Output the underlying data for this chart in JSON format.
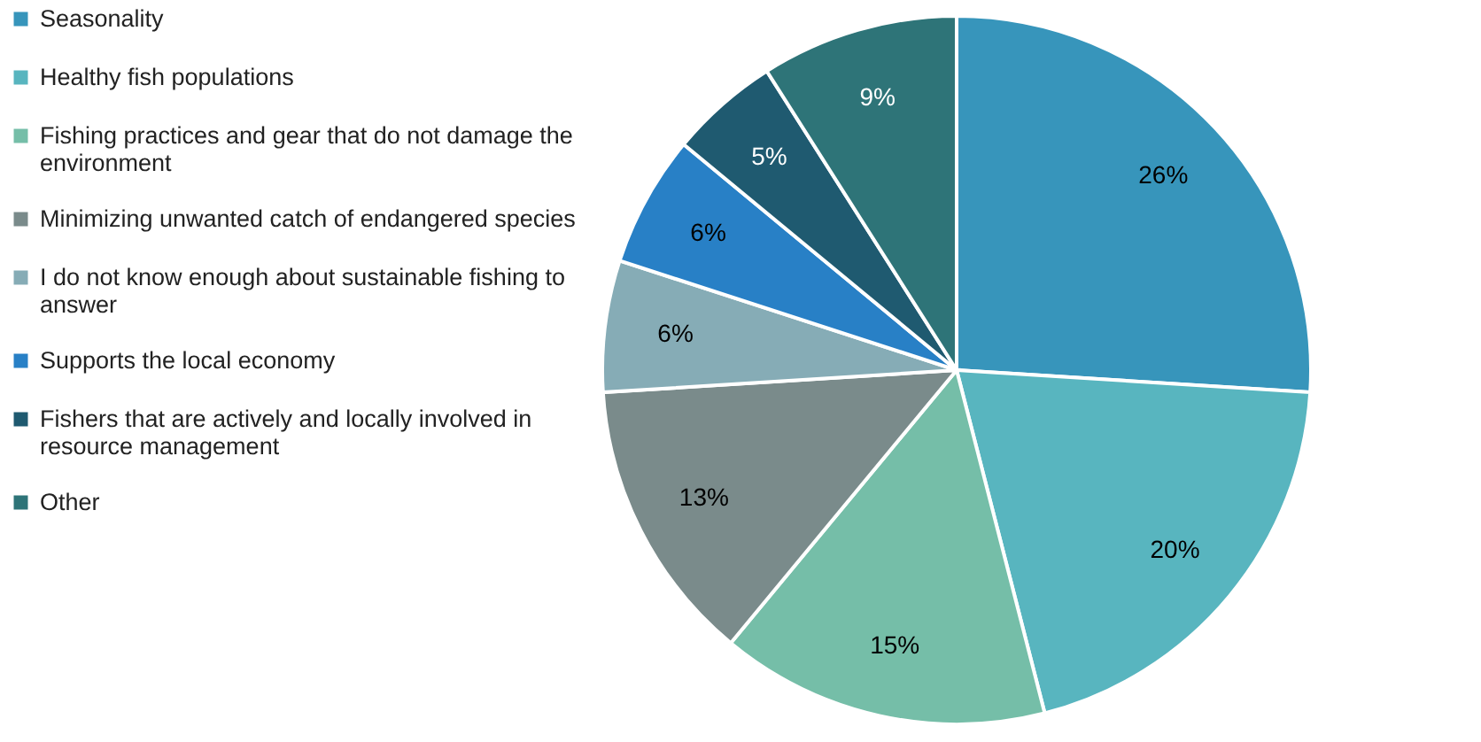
{
  "chart_data": {
    "type": "pie",
    "categories": [
      "Seasonality",
      "Healthy fish populations",
      "Fishing practices and gear that do not damage the environment",
      "Minimizing unwanted catch of endangered species",
      "I do not know enough about sustainable fishing to answer",
      "Supports the local economy",
      "Fishers that are actively and locally involved in resource management",
      "Other"
    ],
    "values": [
      26,
      20,
      15,
      13,
      6,
      6,
      5,
      9
    ],
    "value_labels": [
      "26%",
      "20%",
      "15%",
      "13%",
      "6%",
      "6%",
      "5%",
      "9%"
    ],
    "colors": [
      "#3795bb",
      "#58b5bf",
      "#75bea8",
      "#7a8b8b",
      "#86acb6",
      "#2880c6",
      "#1f5a70",
      "#2e7478"
    ],
    "legend": "left"
  }
}
